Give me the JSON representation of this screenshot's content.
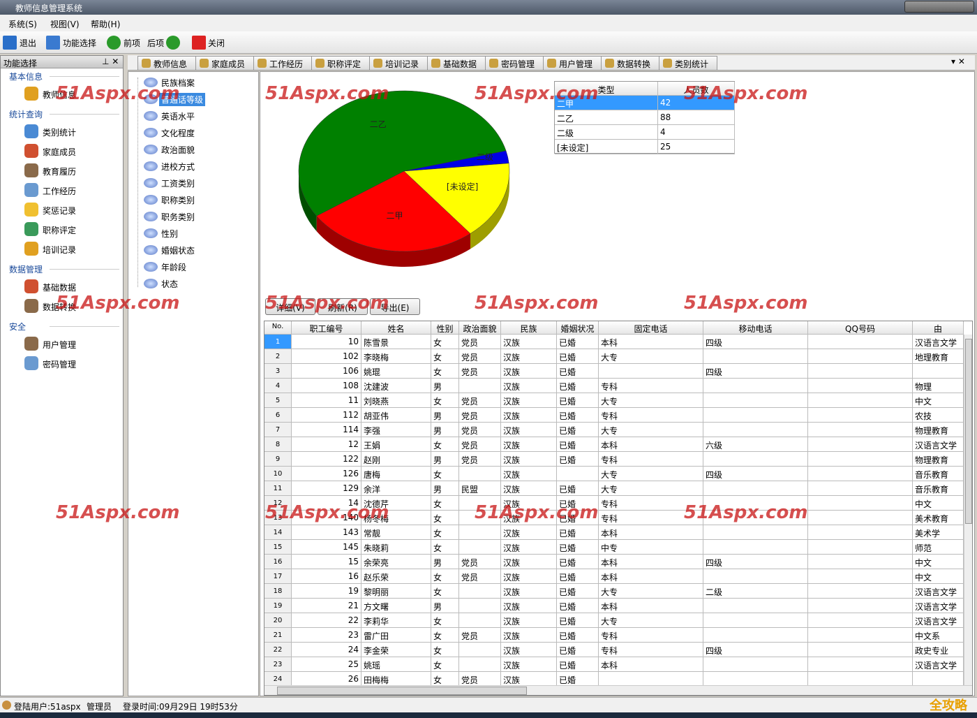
{
  "window": {
    "title": "教师信息管理系统"
  },
  "menu": [
    "系统(S)",
    "视图(V)",
    "帮助(H)"
  ],
  "toolbar": [
    "退出",
    "功能选择",
    "前项",
    "后项",
    "关闭"
  ],
  "nav": {
    "title": "功能选择",
    "groups": [
      {
        "name": "基本信息",
        "items": [
          "教师信息"
        ]
      },
      {
        "name": "统计查询",
        "items": [
          "类别统计",
          "家庭成员",
          "教育履历",
          "工作经历",
          "奖惩记录",
          "职称评定",
          "培训记录"
        ]
      },
      {
        "name": "数据管理",
        "items": [
          "基础数据",
          "数据转换"
        ]
      },
      {
        "name": "安全",
        "items": [
          "用户管理",
          "密码管理"
        ]
      }
    ]
  },
  "tabs": [
    "教师信息",
    "家庭成员",
    "工作经历",
    "职称评定",
    "培训记录",
    "基础数据",
    "密码管理",
    "用户管理",
    "数据转换",
    "类别统计"
  ],
  "category_list": [
    "民族档案",
    "普通话等级",
    "英语水平",
    "文化程度",
    "政治面貌",
    "进校方式",
    "工资类别",
    "职称类别",
    "职务类别",
    "性别",
    "婚姻状态",
    "年龄段",
    "状态"
  ],
  "chart_data": {
    "type": "pie",
    "categories": [
      "二甲",
      "二乙",
      "二级",
      "[未设定]"
    ],
    "values": [
      42,
      88,
      4,
      25
    ],
    "colors": [
      "#ff0000",
      "#008000",
      "#0000e6",
      "#ffff00"
    ],
    "table_headers": [
      "类型",
      "人员数"
    ]
  },
  "buttons": [
    "详细(V)",
    "刷新(R)",
    "导出(E)"
  ],
  "grid": {
    "columns": [
      "No.",
      "职工编号",
      "姓名",
      "性别",
      "政治面貌",
      "民族",
      "婚姻状况",
      "固定电话",
      "移动电话",
      "QQ号码",
      "由"
    ],
    "rows": [
      [
        1,
        10,
        "陈雪景",
        "女",
        "党员",
        "汉族",
        "已婚",
        "本科",
        "四级",
        null,
        "汉语言文学"
      ],
      [
        2,
        102,
        "李晓梅",
        "女",
        "党员",
        "汉族",
        "已婚",
        "大专",
        null,
        null,
        "地理教育"
      ],
      [
        3,
        106,
        "姚琨",
        "女",
        "党员",
        "汉族",
        "已婚",
        null,
        "四级",
        null,
        null
      ],
      [
        4,
        108,
        "沈建波",
        "男",
        null,
        "汉族",
        "已婚",
        "专科",
        null,
        null,
        "物理"
      ],
      [
        5,
        11,
        "刘晓燕",
        "女",
        "党员",
        "汉族",
        "已婚",
        "大专",
        null,
        null,
        "中文"
      ],
      [
        6,
        112,
        "胡亚伟",
        "男",
        "党员",
        "汉族",
        "已婚",
        "专科",
        null,
        null,
        "农技"
      ],
      [
        7,
        114,
        "李强",
        "男",
        "党员",
        "汉族",
        "已婚",
        "大专",
        null,
        null,
        "物理教育"
      ],
      [
        8,
        12,
        "王娟",
        "女",
        "党员",
        "汉族",
        "已婚",
        "本科",
        "六级",
        null,
        "汉语言文学"
      ],
      [
        9,
        122,
        "赵刚",
        "男",
        "党员",
        "汉族",
        "已婚",
        "专科",
        null,
        null,
        "物理教育"
      ],
      [
        10,
        126,
        "唐梅",
        "女",
        null,
        "汉族",
        null,
        "大专",
        "四级",
        null,
        "音乐教育"
      ],
      [
        11,
        129,
        "余洋",
        "男",
        "民盟",
        "汉族",
        "已婚",
        "大专",
        null,
        null,
        "音乐教育"
      ],
      [
        12,
        14,
        "沈德芹",
        "女",
        null,
        "汉族",
        "已婚",
        "专科",
        null,
        null,
        "中文"
      ],
      [
        13,
        140,
        "杨冬梅",
        "女",
        null,
        "汉族",
        "已婚",
        "专科",
        null,
        null,
        "美术教育"
      ],
      [
        14,
        143,
        "常靓",
        "女",
        null,
        "汉族",
        "已婚",
        "本科",
        null,
        null,
        "美术学"
      ],
      [
        15,
        145,
        "朱晓莉",
        "女",
        null,
        "汉族",
        "已婚",
        "中专",
        null,
        null,
        "师范"
      ],
      [
        16,
        15,
        "余荣亮",
        "男",
        "党员",
        "汉族",
        "已婚",
        "本科",
        "四级",
        null,
        "中文"
      ],
      [
        17,
        16,
        "赵乐荣",
        "女",
        "党员",
        "汉族",
        "已婚",
        "本科",
        null,
        null,
        "中文"
      ],
      [
        18,
        19,
        "黎明丽",
        "女",
        null,
        "汉族",
        "已婚",
        "大专",
        "二级",
        null,
        "汉语言文学"
      ],
      [
        19,
        21,
        "方文曙",
        "男",
        null,
        "汉族",
        "已婚",
        "本科",
        null,
        null,
        "汉语言文学"
      ],
      [
        20,
        22,
        "李莉华",
        "女",
        null,
        "汉族",
        "已婚",
        "大专",
        null,
        null,
        "汉语言文学"
      ],
      [
        21,
        23,
        "雷广田",
        "女",
        "党员",
        "汉族",
        "已婚",
        "专科",
        null,
        null,
        "中文系"
      ],
      [
        22,
        24,
        "李金荣",
        "女",
        null,
        "汉族",
        "已婚",
        "专科",
        "四级",
        null,
        "政史专业"
      ],
      [
        23,
        25,
        "姚瑶",
        "女",
        null,
        "汉族",
        "已婚",
        "本科",
        null,
        null,
        "汉语言文学"
      ],
      [
        24,
        26,
        "田梅梅",
        "女",
        "党员",
        "汉族",
        "已婚",
        null,
        null,
        null,
        null
      ]
    ]
  },
  "status": [
    "登陆用户:51aspx",
    "管理员",
    "登录时间:09月29日 19时53分"
  ],
  "watermark": "51Aspx.com",
  "corner_logo": "全攻略"
}
